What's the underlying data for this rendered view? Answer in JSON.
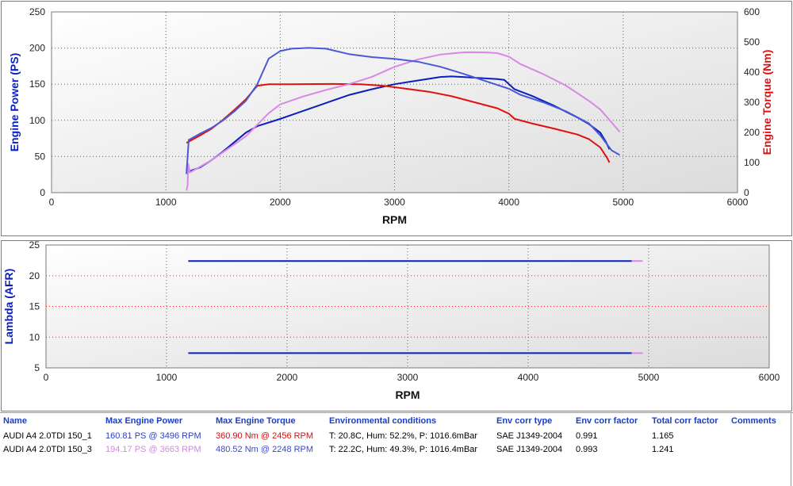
{
  "colors": {
    "power_run1": "#0a1fc0",
    "torque_run1": "#e01010",
    "power_run3": "#d988e6",
    "torque_run3": "#4a5ad6",
    "header_text": "#1a3ec8",
    "plot_bg_top": "#ffffff",
    "plot_bg_bottom": "#dcdcdc",
    "grid": "#e03030"
  },
  "chart_data": [
    {
      "type": "line",
      "xlabel": "RPM",
      "ylabel": "Engine Power (PS)",
      "y2label": "Engine Torque (Nm)",
      "xlim": [
        0,
        6000
      ],
      "ylim": [
        0,
        250
      ],
      "y2lim": [
        0,
        600
      ],
      "x_ticks": [
        "0",
        "1000",
        "2000",
        "3000",
        "4000",
        "5000",
        "6000"
      ],
      "y_ticks": [
        "0",
        "50",
        "100",
        "150",
        "200",
        "250"
      ],
      "y2_ticks": [
        "0",
        "100",
        "200",
        "300",
        "400",
        "500",
        "600"
      ],
      "grid": true,
      "series": [
        {
          "name": "AUDI A4 2.0TDI 150_1",
          "quantity": "Max Engine Power",
          "axis": "left",
          "color": "#0a1fc0",
          "points": [
            [
              1180,
              28
            ],
            [
              1300,
              35
            ],
            [
              1400,
              45
            ],
            [
              1500,
              57
            ],
            [
              1600,
              70
            ],
            [
              1700,
              83
            ],
            [
              1800,
              92
            ],
            [
              2000,
              102
            ],
            [
              2200,
              113
            ],
            [
              2400,
              124
            ],
            [
              2600,
              135
            ],
            [
              2800,
              143
            ],
            [
              3000,
              150
            ],
            [
              3200,
              155
            ],
            [
              3400,
              160
            ],
            [
              3496,
              160.8
            ],
            [
              3600,
              160
            ],
            [
              3800,
              158
            ],
            [
              3900,
              157
            ],
            [
              3960,
              156
            ],
            [
              4050,
              143
            ],
            [
              4200,
              134
            ],
            [
              4400,
              120
            ],
            [
              4600,
              104
            ],
            [
              4700,
              95
            ],
            [
              4800,
              83
            ],
            [
              4850,
              70
            ],
            [
              4880,
              60
            ]
          ]
        },
        {
          "name": "AUDI A4 2.0TDI 150_1",
          "quantity": "Max Engine Torque",
          "axis": "right",
          "color": "#e01010",
          "points": [
            [
              1180,
              165
            ],
            [
              1300,
              190
            ],
            [
              1400,
              212
            ],
            [
              1500,
              242
            ],
            [
              1600,
              275
            ],
            [
              1700,
              310
            ],
            [
              1800,
              355
            ],
            [
              1900,
              360
            ],
            [
              2100,
              360
            ],
            [
              2456,
              360.9
            ],
            [
              2700,
              360
            ],
            [
              2900,
              355
            ],
            [
              3100,
              345
            ],
            [
              3300,
              335
            ],
            [
              3500,
              320
            ],
            [
              3700,
              300
            ],
            [
              3900,
              280
            ],
            [
              4000,
              262
            ],
            [
              4050,
              245
            ],
            [
              4200,
              230
            ],
            [
              4400,
              212
            ],
            [
              4600,
              193
            ],
            [
              4700,
              178
            ],
            [
              4800,
              150
            ],
            [
              4860,
              115
            ],
            [
              4880,
              100
            ]
          ]
        },
        {
          "name": "AUDI A4 2.0TDI 150_3",
          "quantity": "Max Engine Power",
          "axis": "left",
          "color": "#d988e6",
          "points": [
            [
              1180,
              3
            ],
            [
              1190,
              10
            ],
            [
              1195,
              40
            ],
            [
              1210,
              28
            ],
            [
              1300,
              36
            ],
            [
              1400,
              45
            ],
            [
              1500,
              56
            ],
            [
              1600,
              67
            ],
            [
              1700,
              78
            ],
            [
              1800,
              94
            ],
            [
              1900,
              110
            ],
            [
              2000,
              122
            ],
            [
              2200,
              133
            ],
            [
              2400,
              142
            ],
            [
              2600,
              150
            ],
            [
              2800,
              160
            ],
            [
              3000,
              174
            ],
            [
              3200,
              184
            ],
            [
              3400,
              191
            ],
            [
              3600,
              194
            ],
            [
              3663,
              194.2
            ],
            [
              3800,
              194
            ],
            [
              3900,
              193
            ],
            [
              4000,
              188
            ],
            [
              4100,
              178
            ],
            [
              4300,
              164
            ],
            [
              4500,
              148
            ],
            [
              4700,
              127
            ],
            [
              4800,
              115
            ],
            [
              4900,
              97
            ],
            [
              4970,
              84
            ]
          ]
        },
        {
          "name": "AUDI A4 2.0TDI 150_3",
          "quantity": "Max Engine Torque",
          "axis": "right",
          "color": "#4a5ad6",
          "points": [
            [
              1180,
              62
            ],
            [
              1200,
              175
            ],
            [
              1300,
              196
            ],
            [
              1400,
              215
            ],
            [
              1500,
              240
            ],
            [
              1600,
              270
            ],
            [
              1700,
              305
            ],
            [
              1800,
              360
            ],
            [
              1900,
              445
            ],
            [
              2000,
              470
            ],
            [
              2100,
              478
            ],
            [
              2248,
              480.5
            ],
            [
              2400,
              478
            ],
            [
              2600,
              460
            ],
            [
              2800,
              450
            ],
            [
              3000,
              444
            ],
            [
              3200,
              435
            ],
            [
              3400,
              418
            ],
            [
              3600,
              395
            ],
            [
              3800,
              370
            ],
            [
              4000,
              345
            ],
            [
              4100,
              325
            ],
            [
              4300,
              300
            ],
            [
              4500,
              270
            ],
            [
              4700,
              230
            ],
            [
              4800,
              190
            ],
            [
              4900,
              140
            ],
            [
              4970,
              125
            ]
          ]
        }
      ]
    },
    {
      "type": "line",
      "xlabel": "RPM",
      "ylabel": "Lambda (AFR)",
      "xlim": [
        0,
        6000
      ],
      "ylim": [
        5,
        25
      ],
      "x_ticks": [
        "0",
        "1000",
        "2000",
        "3000",
        "4000",
        "5000",
        "6000"
      ],
      "y_ticks": [
        "5",
        "10",
        "15",
        "20",
        "25"
      ],
      "grid": true,
      "series": [
        {
          "name": "AUDI A4 2.0TDI 150_1",
          "color": "#0a1fc0",
          "segments": [
            [
              [
                1180,
                22.4
              ],
              [
                4860,
                22.4
              ]
            ],
            [
              [
                1180,
                7.4
              ],
              [
                4860,
                7.4
              ]
            ]
          ]
        },
        {
          "name": "AUDI A4 2.0TDI 150_3",
          "color": "#d988e6",
          "segments": [
            [
              [
                4860,
                22.4
              ],
              [
                4950,
                22.4
              ]
            ],
            [
              [
                4860,
                7.4
              ],
              [
                4950,
                7.4
              ]
            ]
          ]
        }
      ]
    }
  ],
  "results_table": {
    "headers": [
      "Name",
      "Max Engine Power",
      "Max Engine Torque",
      "Environmental conditions",
      "Env corr type",
      "Env corr factor",
      "Total corr factor",
      "Comments"
    ],
    "rows": [
      {
        "name": "AUDI A4 2.0TDI 150_1",
        "max_power": "160.81 PS @ 3496 RPM",
        "max_power_color": "#2a3ec8",
        "max_torque": "360.90 Nm @ 2456 RPM",
        "max_torque_color": "#d41010",
        "env": "T: 20.8C, Hum: 52.2%, P: 1016.6mBar",
        "corr_type": "SAE J1349-2004",
        "corr_factor": "0.991",
        "total_factor": "1.165",
        "comments": ""
      },
      {
        "name": "AUDI A4 2.0TDI 150_3",
        "max_power": "194.17 PS @ 3663 RPM",
        "max_power_color": "#d08ae0",
        "max_torque": "480.52 Nm @ 2248 RPM",
        "max_torque_color": "#3a4ac8",
        "env": "T: 22.2C, Hum: 49.3%, P: 1016.4mBar",
        "corr_type": "SAE J1349-2004",
        "corr_factor": "0.993",
        "total_factor": "1.241",
        "comments": ""
      }
    ]
  }
}
